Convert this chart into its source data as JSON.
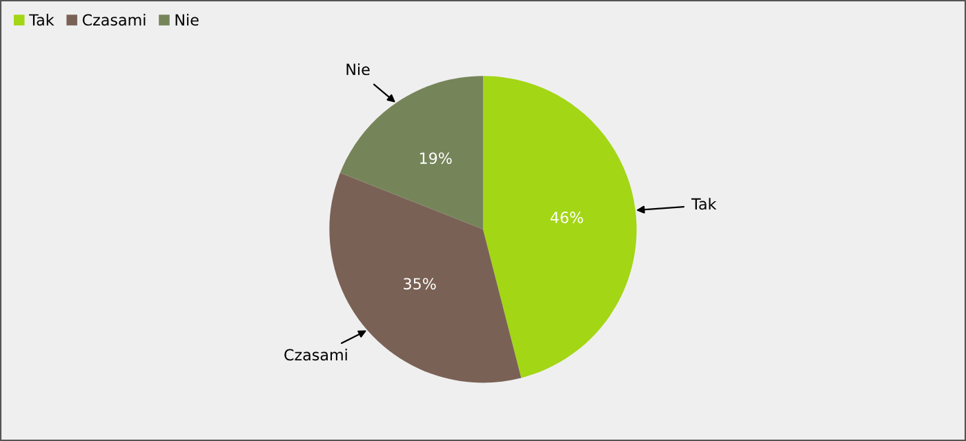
{
  "chart_data": {
    "type": "pie",
    "categories": [
      "Tak",
      "Czasami",
      "Nie"
    ],
    "values": [
      46,
      35,
      19
    ],
    "value_labels": [
      "46%",
      "35%",
      "19%"
    ],
    "colors": [
      "#a3d615",
      "#7a6155",
      "#76845a"
    ],
    "legend": "top left"
  }
}
